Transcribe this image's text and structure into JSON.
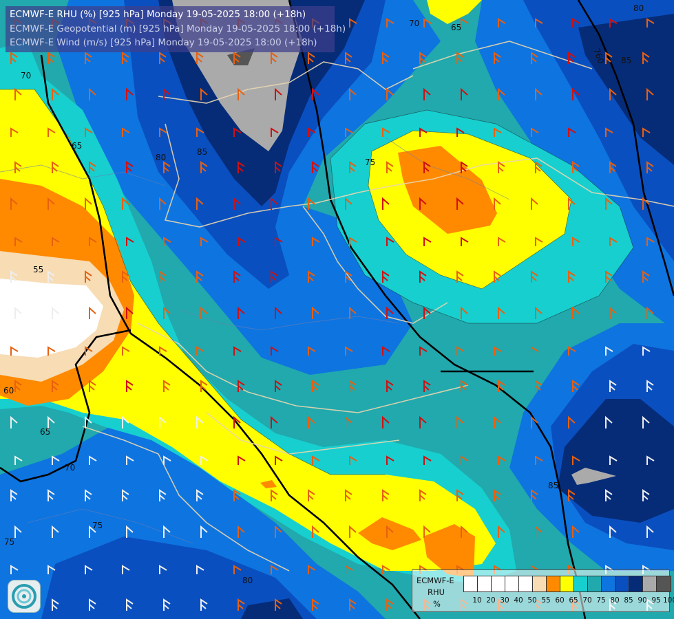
{
  "header": {
    "line1": "ECMWF-E RHU (%) [925 hPa] Monday 19-05-2025 18:00 (+18h)",
    "line2": "ECMWF-E Geopotential (m) [925 hPa] Monday 19-05-2025 18:00 (+18h)",
    "line3": "ECMWF-E Wind (m/s) [925 hPa] Monday 19-05-2025 18:00 (+18h)"
  },
  "legend": {
    "model": "ECMWF-E",
    "variable": "RHU",
    "unit": "%",
    "classes": [
      {
        "label": "10",
        "color": "#ffffff"
      },
      {
        "label": "20",
        "color": "#ffffff"
      },
      {
        "label": "30",
        "color": "#ffffff"
      },
      {
        "label": "40",
        "color": "#ffffff"
      },
      {
        "label": "50",
        "color": "#ffffff"
      },
      {
        "label": "55",
        "color": "#f7dcb4"
      },
      {
        "label": "60",
        "color": "#ff8a00"
      },
      {
        "label": "65",
        "color": "#ffff00"
      },
      {
        "label": "70",
        "color": "#17cfcf"
      },
      {
        "label": "75",
        "color": "#21a9ad"
      },
      {
        "label": "80",
        "color": "#0e74e0"
      },
      {
        "label": "85",
        "color": "#0a4fbf"
      },
      {
        "label": "90",
        "color": "#062c78"
      },
      {
        "label": "95",
        "color": "#aaaaaa"
      },
      {
        "label": "100",
        "color": "#555555"
      }
    ]
  },
  "map": {
    "contour_labels": {
      "rhu": [
        "70",
        "65",
        "75",
        "80",
        "85",
        "70",
        "65",
        "80",
        "85",
        "55",
        "60",
        "65",
        "70",
        "75",
        "75",
        "80",
        "85"
      ],
      "geopotential": [
        "760"
      ]
    },
    "colors": {
      "white": "#ffffff",
      "beige": "#f7dcb4",
      "orange": "#ff8a00",
      "yellow": "#ffff00",
      "cyan": "#17cfcf",
      "teal": "#21a9ad",
      "blue": "#0e74e0",
      "midblue": "#0a4fbf",
      "navy": "#062c78",
      "gray": "#aaaaaa",
      "darkgray": "#555555",
      "wind_red": "#d01010",
      "wind_orange": "#e86010",
      "wind_white": "#eeeeee"
    }
  },
  "logo": {
    "name": "ecmwf-logo-icon"
  }
}
